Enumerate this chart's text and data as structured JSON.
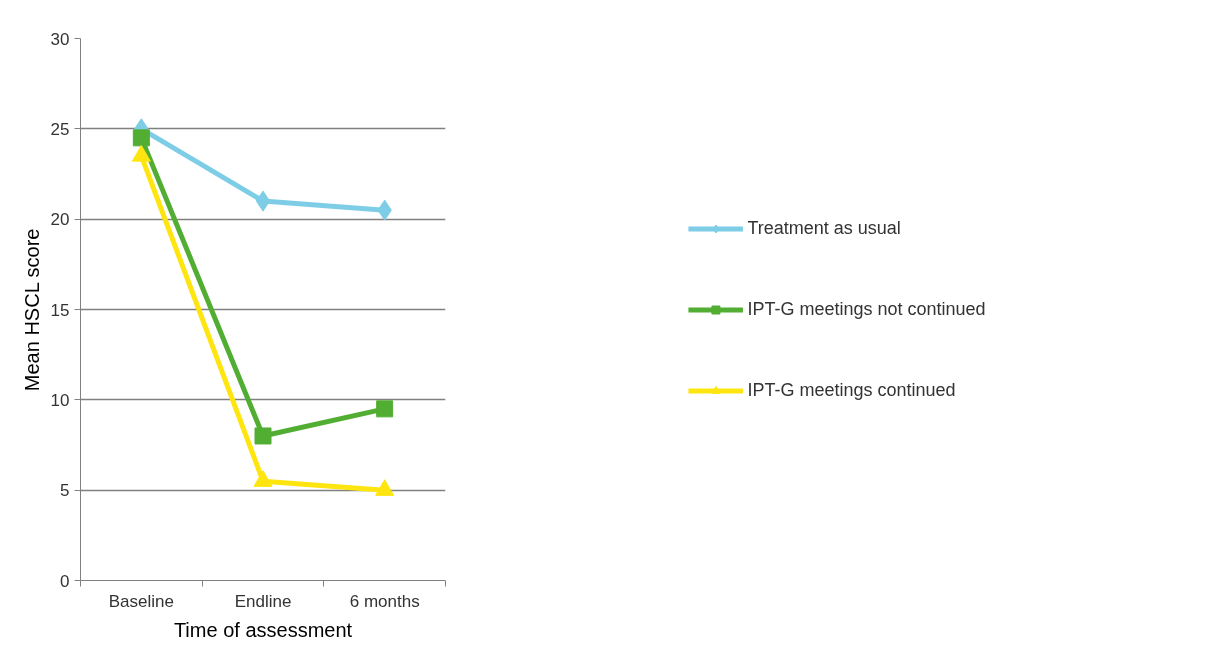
{
  "chart_data": {
    "type": "line",
    "xlabel": "Time of assessment",
    "ylabel": "Mean HSCL score",
    "categories": [
      "Baseline",
      "Endline",
      "6 months"
    ],
    "series": [
      {
        "name": "Treatment as usual",
        "color": "#7ecde6",
        "marker": "diamond",
        "values": [
          25,
          21,
          20.5
        ]
      },
      {
        "name": "IPT-G meetings not continued",
        "color": "#52ae32",
        "marker": "square",
        "values": [
          24.5,
          8,
          9.5
        ]
      },
      {
        "name": "IPT-G meetings continued",
        "color": "#ffe510",
        "marker": "triangle",
        "values": [
          23.5,
          5.5,
          5
        ]
      }
    ],
    "ylim": [
      0,
      30
    ],
    "yticks": [
      0,
      5,
      10,
      15,
      20,
      25,
      30
    ],
    "grid": "y",
    "legend": "right",
    "line_style": "solid"
  }
}
